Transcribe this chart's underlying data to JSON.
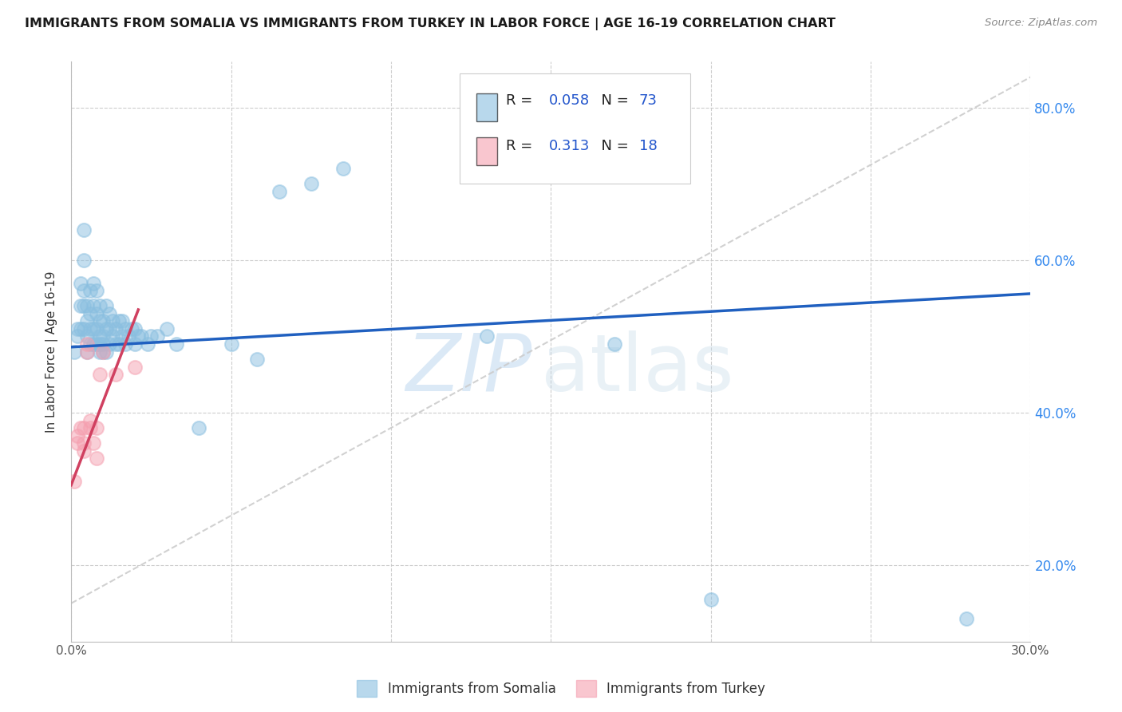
{
  "title": "IMMIGRANTS FROM SOMALIA VS IMMIGRANTS FROM TURKEY IN LABOR FORCE | AGE 16-19 CORRELATION CHART",
  "source": "Source: ZipAtlas.com",
  "ylabel": "In Labor Force | Age 16-19",
  "xlim": [
    0.0,
    0.3
  ],
  "ylim": [
    0.1,
    0.86
  ],
  "xticks": [
    0.0,
    0.05,
    0.1,
    0.15,
    0.2,
    0.25,
    0.3
  ],
  "xticklabels": [
    "0.0%",
    "",
    "",
    "",
    "",
    "",
    "30.0%"
  ],
  "yticks_right": [
    0.2,
    0.4,
    0.6,
    0.8
  ],
  "ytick_labels_right": [
    "20.0%",
    "40.0%",
    "60.0%",
    "80.0%"
  ],
  "somalia_R": 0.058,
  "somalia_N": 73,
  "turkey_R": 0.313,
  "turkey_N": 18,
  "somalia_color": "#8abfe0",
  "turkey_color": "#f5a0b0",
  "somalia_line_color": "#2060c0",
  "turkey_line_color": "#d04060",
  "ref_line_color": "#cccccc",
  "background_color": "#ffffff",
  "grid_color": "#c8c8c8",
  "somalia_x": [
    0.001,
    0.002,
    0.002,
    0.003,
    0.003,
    0.003,
    0.004,
    0.004,
    0.004,
    0.004,
    0.004,
    0.005,
    0.005,
    0.005,
    0.005,
    0.006,
    0.006,
    0.006,
    0.006,
    0.007,
    0.007,
    0.007,
    0.007,
    0.008,
    0.008,
    0.008,
    0.008,
    0.009,
    0.009,
    0.009,
    0.009,
    0.009,
    0.01,
    0.01,
    0.01,
    0.01,
    0.011,
    0.011,
    0.011,
    0.012,
    0.012,
    0.012,
    0.013,
    0.013,
    0.014,
    0.014,
    0.015,
    0.015,
    0.016,
    0.016,
    0.017,
    0.017,
    0.018,
    0.019,
    0.02,
    0.02,
    0.021,
    0.022,
    0.024,
    0.025,
    0.027,
    0.03,
    0.033,
    0.04,
    0.05,
    0.058,
    0.065,
    0.075,
    0.085,
    0.13,
    0.17,
    0.2,
    0.28
  ],
  "somalia_y": [
    0.48,
    0.5,
    0.51,
    0.51,
    0.54,
    0.57,
    0.51,
    0.54,
    0.56,
    0.6,
    0.64,
    0.48,
    0.5,
    0.52,
    0.54,
    0.49,
    0.51,
    0.53,
    0.56,
    0.49,
    0.51,
    0.54,
    0.57,
    0.49,
    0.51,
    0.53,
    0.56,
    0.48,
    0.5,
    0.52,
    0.54,
    0.49,
    0.48,
    0.5,
    0.52,
    0.49,
    0.48,
    0.51,
    0.54,
    0.49,
    0.51,
    0.53,
    0.5,
    0.52,
    0.49,
    0.51,
    0.49,
    0.52,
    0.5,
    0.52,
    0.49,
    0.51,
    0.5,
    0.51,
    0.49,
    0.51,
    0.5,
    0.5,
    0.49,
    0.5,
    0.5,
    0.51,
    0.49,
    0.38,
    0.49,
    0.47,
    0.69,
    0.7,
    0.72,
    0.5,
    0.49,
    0.155,
    0.13
  ],
  "turkey_x": [
    0.001,
    0.002,
    0.002,
    0.003,
    0.004,
    0.004,
    0.004,
    0.005,
    0.005,
    0.006,
    0.006,
    0.007,
    0.008,
    0.008,
    0.009,
    0.01,
    0.014,
    0.02
  ],
  "turkey_y": [
    0.31,
    0.36,
    0.37,
    0.38,
    0.35,
    0.36,
    0.38,
    0.48,
    0.49,
    0.38,
    0.39,
    0.36,
    0.34,
    0.38,
    0.45,
    0.48,
    0.45,
    0.46
  ],
  "somalia_trend_x": [
    0.0,
    0.3
  ],
  "somalia_trend_y": [
    0.486,
    0.556
  ],
  "turkey_trend_x": [
    0.0,
    0.021
  ],
  "turkey_trend_y": [
    0.305,
    0.535
  ]
}
